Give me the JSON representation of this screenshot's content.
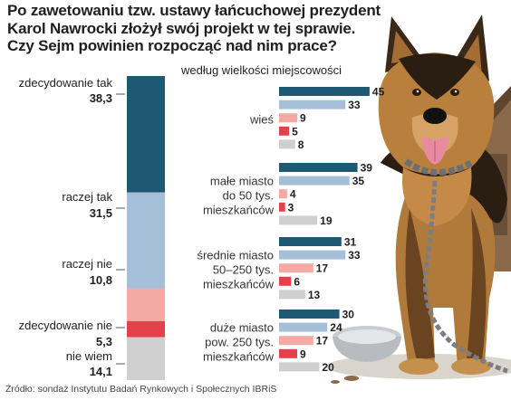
{
  "title": {
    "lines": [
      "Po zawetowaniu tzw. ustawy łańcuchowej prezydent",
      "Karol Nawrocki złożył swój projekt w tej sprawie.",
      "Czy Sejm powinien rozpocząć nad nim prace?"
    ]
  },
  "source": "Źródło: sondaż Instytutu Badań Rynkowych i Społecznych IBRiS",
  "colors": {
    "zdecydowanie_tak": "#1f5873",
    "raczej_tak": "#a6bfd9",
    "raczej_nie": "#f4a9a5",
    "zdecydowanie_nie": "#e5404c",
    "nie_wiem": "#cfcfcf"
  },
  "illustration": {
    "icon": "german-shepherd-dog-on-chain-icon"
  },
  "chart_data": [
    {
      "type": "bar",
      "stacked": true,
      "orientation": "vertical",
      "categories": [
        "zdecydowanie tak",
        "raczej tak",
        "raczej nie",
        "zdecydowanie nie",
        "nie wiem"
      ],
      "values": [
        38.3,
        31.5,
        10.8,
        5.3,
        14.1
      ],
      "value_labels": [
        "38,3",
        "31,5",
        "10,8",
        "5,3",
        "14,1"
      ],
      "unit": "%"
    },
    {
      "type": "bar",
      "orientation": "horizontal",
      "subtitle": "według wielkości  miejscowości",
      "series_order": [
        "zdecydowanie tak",
        "raczej tak",
        "raczej nie",
        "zdecydowanie nie",
        "nie wiem"
      ],
      "groups": [
        {
          "label_lines": [
            "wieś"
          ],
          "values": [
            45,
            33,
            9,
            5,
            8
          ]
        },
        {
          "label_lines": [
            "małe miasto",
            "do 50 tys.",
            "mieszkańców"
          ],
          "values": [
            39,
            35,
            4,
            3,
            19
          ]
        },
        {
          "label_lines": [
            "średnie miasto",
            "50–250 tys.",
            "mieszkańców"
          ],
          "values": [
            31,
            33,
            17,
            6,
            13
          ]
        },
        {
          "label_lines": [
            "duże miasto",
            "pow. 250 tys.",
            "mieszkańców"
          ],
          "values": [
            30,
            24,
            17,
            9,
            20
          ]
        }
      ]
    }
  ]
}
